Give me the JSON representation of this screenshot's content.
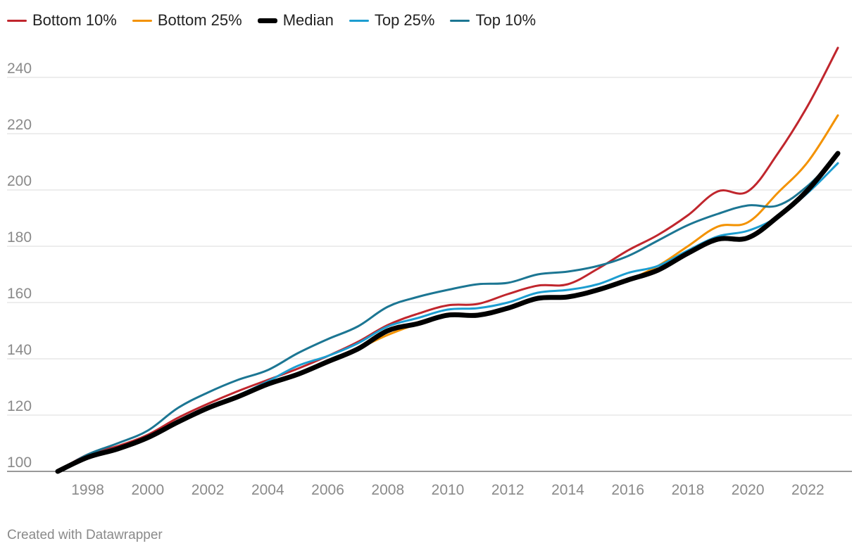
{
  "chart_data": {
    "type": "line",
    "title": "",
    "xlabel": "",
    "ylabel": "",
    "ylim": [
      100,
      250
    ],
    "xlim": [
      1997,
      2023
    ],
    "y_ticks": [
      100,
      120,
      140,
      160,
      180,
      200,
      220,
      240
    ],
    "x_ticks": [
      1998,
      2000,
      2002,
      2004,
      2006,
      2008,
      2010,
      2012,
      2014,
      2016,
      2018,
      2020,
      2022
    ],
    "grid": true,
    "legend_position": "top-left",
    "x": [
      1997,
      1998,
      1999,
      2000,
      2001,
      2002,
      2003,
      2004,
      2005,
      2006,
      2007,
      2008,
      2009,
      2010,
      2011,
      2012,
      2013,
      2014,
      2015,
      2016,
      2017,
      2018,
      2019,
      2020,
      2021,
      2022,
      2023
    ],
    "series": [
      {
        "name": "Bottom 10%",
        "color": "#c0262d",
        "values": [
          100,
          106,
          109,
          113,
          119,
          124,
          128.5,
          132.5,
          136.5,
          141,
          146,
          152,
          156,
          159,
          159.5,
          163,
          166,
          166.5,
          172,
          178.5,
          184,
          191,
          199.5,
          199.5,
          213,
          230,
          250.5
        ]
      },
      {
        "name": "Bottom 25%",
        "color": "#f39200",
        "values": [
          100,
          105,
          108,
          112,
          118,
          122.5,
          126.5,
          131,
          134.5,
          138.5,
          143.5,
          148.5,
          152.5,
          156,
          155.5,
          158,
          161.5,
          162,
          164.5,
          168,
          173,
          180,
          187,
          188.5,
          199,
          210,
          226.5
        ]
      },
      {
        "name": "Top 25%",
        "color": "#1c9dd0",
        "values": [
          100,
          105.5,
          108.5,
          112,
          118,
          123,
          127,
          132,
          137.5,
          141,
          145.5,
          151.5,
          154.5,
          157.5,
          158,
          160,
          163.5,
          164.5,
          166.5,
          170.5,
          173,
          178.5,
          183.5,
          185.5,
          190.5,
          199,
          209.5
        ]
      },
      {
        "name": "Top 10%",
        "color": "#1c7693",
        "values": [
          100,
          106,
          110,
          114.5,
          122.5,
          128,
          132.5,
          136,
          142,
          147,
          151.5,
          158.5,
          162,
          164.5,
          166.5,
          167,
          170,
          171,
          173,
          176.5,
          182,
          187.5,
          191.5,
          194.5,
          194.5,
          201.5,
          212.5
        ]
      },
      {
        "name": "Median",
        "color": "#000000",
        "values": [
          100,
          105,
          108,
          112,
          117.5,
          122.5,
          126.5,
          131,
          134.5,
          139,
          143.5,
          150,
          152.5,
          155.5,
          155.5,
          158,
          161.5,
          162,
          164.5,
          168,
          171.5,
          177.5,
          182.5,
          183,
          190.5,
          200,
          213
        ]
      }
    ]
  },
  "legend": {
    "items": [
      {
        "label": "Bottom 10%",
        "color": "#c0262d",
        "width": 3
      },
      {
        "label": "Bottom 25%",
        "color": "#f39200",
        "width": 3
      },
      {
        "label": "Median",
        "color": "#000000",
        "width": 7
      },
      {
        "label": "Top 25%",
        "color": "#1c9dd0",
        "width": 3
      },
      {
        "label": "Top 10%",
        "color": "#1c7693",
        "width": 3
      }
    ]
  },
  "footer": {
    "credit": "Created with Datawrapper"
  }
}
